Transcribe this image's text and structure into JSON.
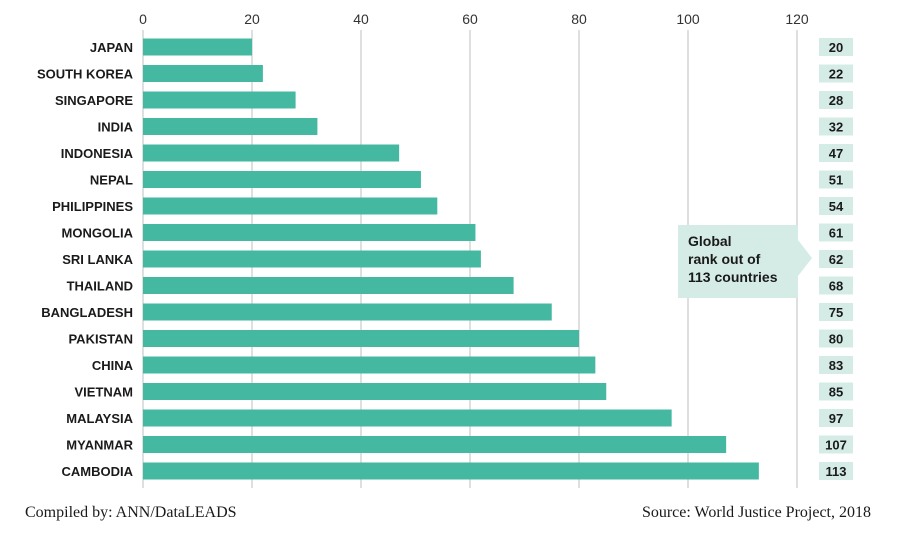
{
  "chart_data": {
    "type": "bar",
    "orientation": "horizontal",
    "categories": [
      "JAPAN",
      "SOUTH KOREA",
      "SINGAPORE",
      "INDIA",
      "INDONESIA",
      "NEPAL",
      "PHILIPPINES",
      "MONGOLIA",
      "SRI LANKA",
      "THAILAND",
      "BANGLADESH",
      "PAKISTAN",
      "CHINA",
      "VIETNAM",
      "MALAYSIA",
      "MYANMAR",
      "CAMBODIA"
    ],
    "values": [
      20,
      22,
      28,
      32,
      47,
      51,
      54,
      61,
      62,
      68,
      75,
      80,
      83,
      85,
      97,
      107,
      113
    ],
    "xlim": [
      0,
      120
    ],
    "xticks": [
      0,
      20,
      40,
      60,
      80,
      100,
      120
    ],
    "grid": true,
    "bar_color": "#45b8a1",
    "rank_box_color": "#d5ece6"
  },
  "callout": {
    "lines": [
      "Global",
      "rank out of",
      "113 countries"
    ],
    "color": "#d5ece6"
  },
  "footer": {
    "left": "Compiled by: ANN/DataLEADS",
    "right": "Source: World Justice Project, 2018"
  }
}
